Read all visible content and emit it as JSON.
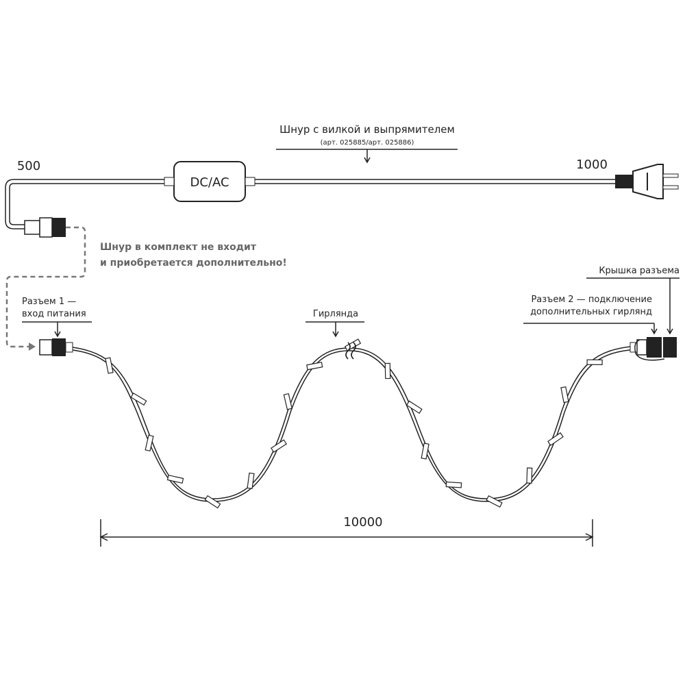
{
  "labels": {
    "cord_title": "Шнур с вилкой и выпрямителем",
    "cord_article": "(арт. 025885/арт. 025886)",
    "converter": "DC/AC",
    "length_500": "500",
    "length_1000": "1000",
    "not_included_line1": "Шнур в комплект не входит",
    "not_included_line2": "и приобретается дополнительно!",
    "connector1_line1": "Разъем 1 —",
    "connector1_line2": "вход питания",
    "garland": "Гирлянда",
    "cap": "Крышка разъема",
    "connector2_line1": "Разъем 2 — подключение",
    "connector2_line2": "дополнительных гирлянд",
    "length_10000": "10000"
  },
  "colors": {
    "line": "#222222",
    "dashed": "#777777",
    "note": "#666666"
  }
}
